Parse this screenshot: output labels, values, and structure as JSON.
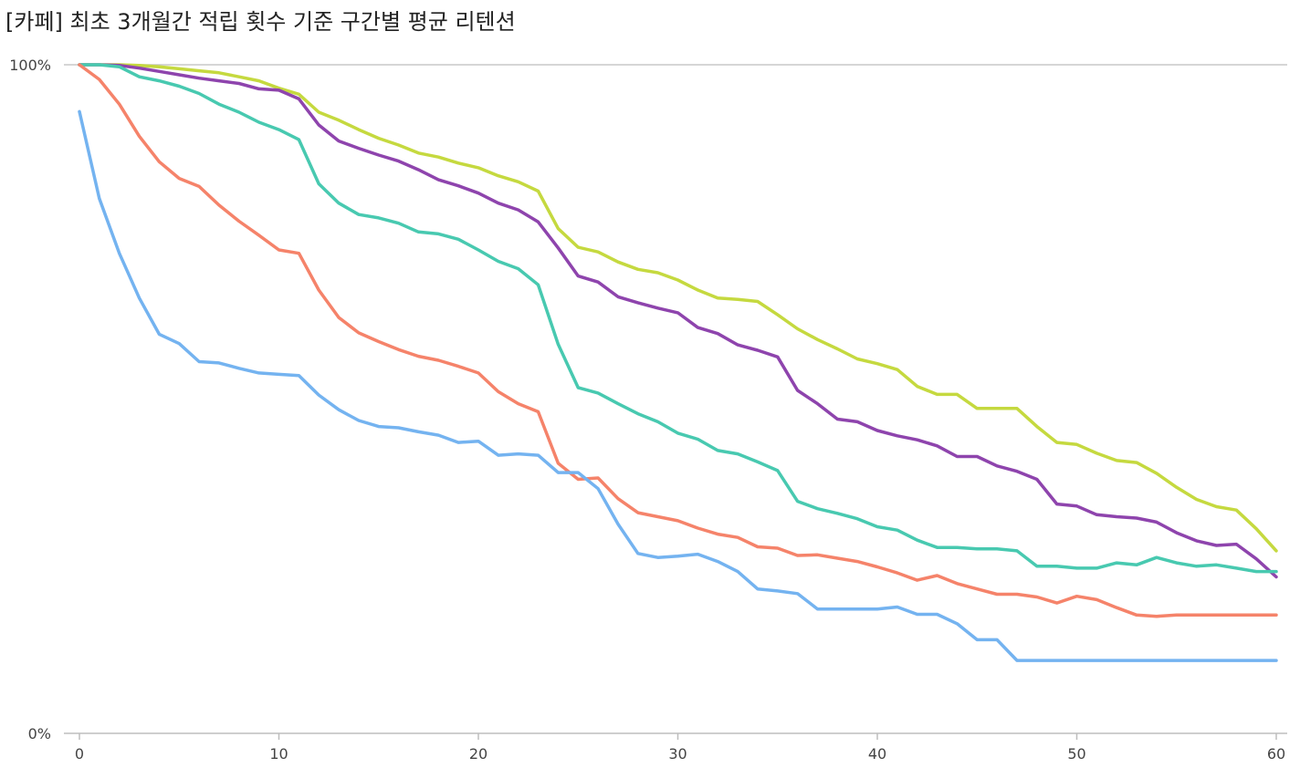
{
  "chart_data": {
    "type": "line",
    "title": "[카페] 최초 3개월간 적립 횟수 기준 구간별 평균 리텐션",
    "xlabel": "",
    "ylabel": "",
    "xlim": [
      0,
      60
    ],
    "ylim": [
      0,
      100
    ],
    "x_ticks": [
      "0",
      "10",
      "20",
      "30",
      "40",
      "50",
      "60"
    ],
    "y_ticks": [
      "0%",
      "100%"
    ],
    "grid": false,
    "series": [
      {
        "color": "#c5d93f",
        "values": [
          100,
          100,
          100,
          99.9,
          99.7,
          99.4,
          99.1,
          98.8,
          98.2,
          97.6,
          96.5,
          95.6,
          92.9,
          91.7,
          90.3,
          89.0,
          88.0,
          86.8,
          86.2,
          85.3,
          84.6,
          83.4,
          82.5,
          81.1,
          75.5,
          72.7,
          72.0,
          70.5,
          69.4,
          68.9,
          67.8,
          66.3,
          65.1,
          64.9,
          64.6,
          62.6,
          60.5,
          58.9,
          57.5,
          56.0,
          55.3,
          54.4,
          51.9,
          50.7,
          50.7,
          48.6,
          48.6,
          48.6,
          45.9,
          43.5,
          43.2,
          41.9,
          40.8,
          40.5,
          38.9,
          36.8,
          35.0,
          33.9,
          33.4,
          30.6,
          27.3
        ]
      },
      {
        "color": "#8e44ad",
        "values": [
          100,
          100,
          99.9,
          99.5,
          99.0,
          98.5,
          98.0,
          97.6,
          97.2,
          96.4,
          96.2,
          94.9,
          91.0,
          88.6,
          87.5,
          86.5,
          85.6,
          84.3,
          82.8,
          81.9,
          80.8,
          79.3,
          78.3,
          76.5,
          72.6,
          68.4,
          67.5,
          65.3,
          64.4,
          63.6,
          62.9,
          60.7,
          59.8,
          58.1,
          57.3,
          56.3,
          51.3,
          49.3,
          47.0,
          46.6,
          45.3,
          44.5,
          43.9,
          43.0,
          41.4,
          41.4,
          40.0,
          39.2,
          38.0,
          34.3,
          34.0,
          32.7,
          32.4,
          32.2,
          31.6,
          30.0,
          28.8,
          28.1,
          28.3,
          26.1,
          23.4
        ]
      },
      {
        "color": "#48c9b0",
        "values": [
          100,
          100,
          99.7,
          98.2,
          97.6,
          96.8,
          95.7,
          94.1,
          92.9,
          91.4,
          90.3,
          88.8,
          82.2,
          79.3,
          77.6,
          77.1,
          76.3,
          75.0,
          74.7,
          73.9,
          72.3,
          70.6,
          69.5,
          67.1,
          58.2,
          51.7,
          50.9,
          49.3,
          47.8,
          46.6,
          44.9,
          44.0,
          42.3,
          41.8,
          40.6,
          39.3,
          34.7,
          33.6,
          32.9,
          32.1,
          30.9,
          30.4,
          28.9,
          27.8,
          27.8,
          27.6,
          27.6,
          27.3,
          25.0,
          25.0,
          24.7,
          24.7,
          25.5,
          25.2,
          26.3,
          25.5,
          25.0,
          25.2,
          24.7,
          24.2,
          24.2
        ]
      },
      {
        "color": "#f5836a",
        "values": [
          100,
          97.8,
          94.1,
          89.3,
          85.5,
          83.0,
          81.8,
          79.0,
          76.6,
          74.5,
          72.3,
          71.8,
          66.3,
          62.2,
          59.9,
          58.6,
          57.4,
          56.4,
          55.8,
          54.9,
          53.9,
          51.1,
          49.3,
          48.1,
          40.4,
          38.0,
          38.2,
          35.1,
          33.0,
          32.4,
          31.8,
          30.7,
          29.8,
          29.3,
          27.9,
          27.7,
          26.6,
          26.7,
          26.2,
          25.7,
          24.9,
          24.0,
          22.9,
          23.6,
          22.4,
          21.6,
          20.8,
          20.8,
          20.4,
          19.5,
          20.5,
          20.0,
          18.8,
          17.7,
          17.5,
          17.7,
          17.7,
          17.7,
          17.7,
          17.7,
          17.7
        ]
      },
      {
        "color": "#74b3f0",
        "values": [
          93,
          80.0,
          71.8,
          65.1,
          59.7,
          58.3,
          55.6,
          55.4,
          54.6,
          53.9,
          53.7,
          53.5,
          50.6,
          48.4,
          46.8,
          45.9,
          45.7,
          45.1,
          44.6,
          43.5,
          43.7,
          41.6,
          41.8,
          41.6,
          39.0,
          39.0,
          36.6,
          31.3,
          26.9,
          26.3,
          26.5,
          26.8,
          25.7,
          24.2,
          21.6,
          21.3,
          20.9,
          18.6,
          18.6,
          18.6,
          18.6,
          18.9,
          17.8,
          17.8,
          16.4,
          14.0,
          14.0,
          10.9,
          10.9,
          10.9,
          10.9,
          10.9,
          10.9,
          10.9,
          10.9,
          10.9,
          10.9,
          10.9,
          10.9,
          10.9,
          10.9
        ]
      }
    ]
  }
}
